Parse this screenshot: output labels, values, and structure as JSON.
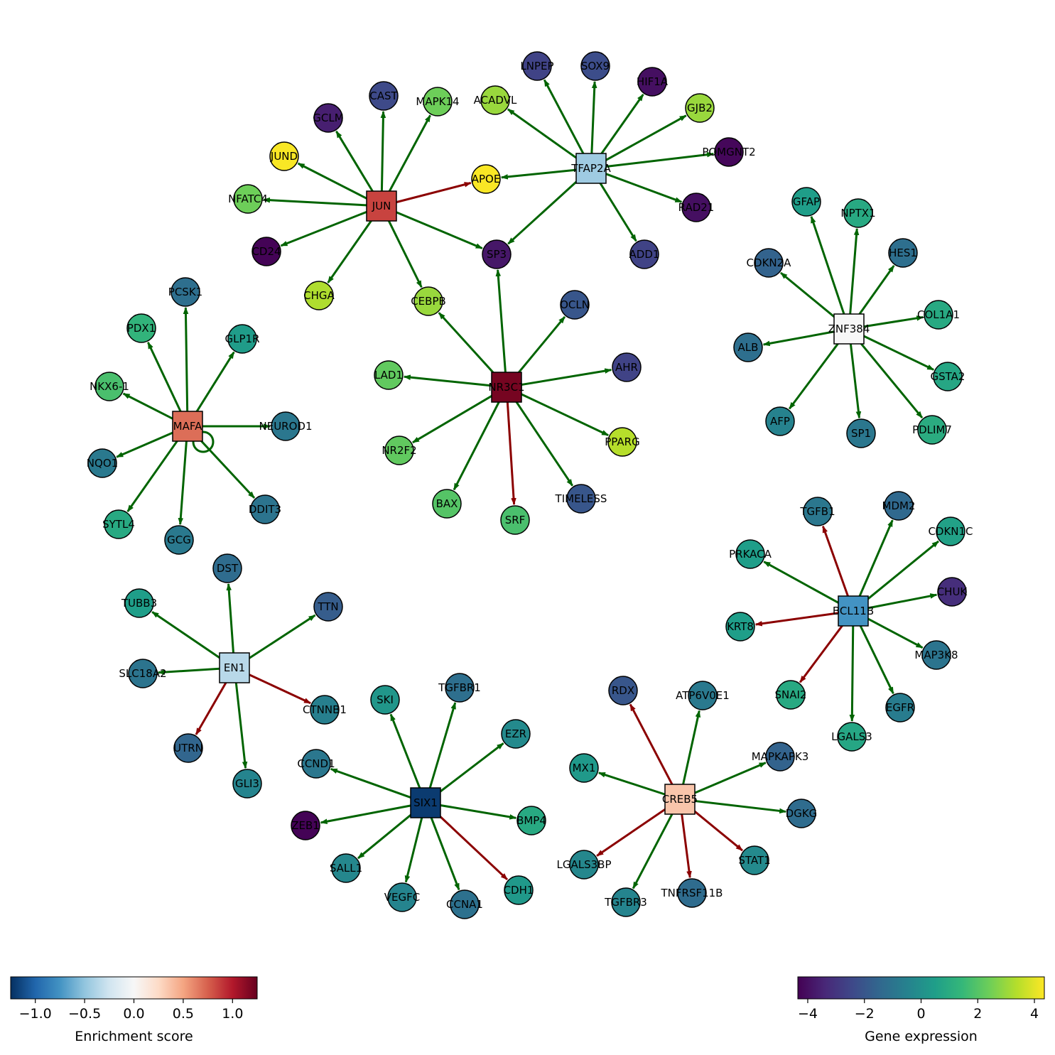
{
  "network": {
    "tfs": [
      {
        "id": "JUN",
        "label": "JUN",
        "score": 0.85
      },
      {
        "id": "TFAP2A",
        "label": "TFAP2A",
        "score": -0.45
      },
      {
        "id": "ZNF384",
        "label": "ZNF384",
        "score": 0.0
      },
      {
        "id": "MAFA",
        "label": "MAFA",
        "score": 0.7
      },
      {
        "id": "NR3C1",
        "label": "NR3C1",
        "score": 1.2
      },
      {
        "id": "BCL11B",
        "label": "BCL11B",
        "score": -0.75
      },
      {
        "id": "EN1",
        "label": "EN1",
        "score": -0.35
      },
      {
        "id": "SIX1",
        "label": "SIX1",
        "score": -1.2
      },
      {
        "id": "CREB5",
        "label": "CREB5",
        "score": 0.35
      }
    ],
    "genes": [
      {
        "id": "JUND",
        "label": "JUND",
        "expr": 4.3
      },
      {
        "id": "GCLM",
        "label": "GCLM",
        "expr": -3.6
      },
      {
        "id": "CAST",
        "label": "CAST",
        "expr": -2.4
      },
      {
        "id": "MAPK14",
        "label": "MAPK14",
        "expr": 2.4
      },
      {
        "id": "NFATC4",
        "label": "NFATC4",
        "expr": 2.4
      },
      {
        "id": "CD24",
        "label": "CD24",
        "expr": -4.3
      },
      {
        "id": "CHGA",
        "label": "CHGA",
        "expr": 3.3
      },
      {
        "id": "APOE",
        "label": "APOE",
        "expr": 4.3
      },
      {
        "id": "SP3",
        "label": "SP3",
        "expr": -3.8
      },
      {
        "id": "CEBPB",
        "label": "CEBPB",
        "expr": 3.0
      },
      {
        "id": "LNPEP",
        "label": "LNPEP",
        "expr": -2.6
      },
      {
        "id": "SOX9",
        "label": "SOX9",
        "expr": -2.3
      },
      {
        "id": "HIF1A",
        "label": "HIF1A",
        "expr": -4.0
      },
      {
        "id": "ACADVL",
        "label": "ACADVL",
        "expr": 3.0
      },
      {
        "id": "GJB2",
        "label": "GJB2",
        "expr": 3.0
      },
      {
        "id": "POMGNT2",
        "label": "POMGNT2",
        "expr": -4.2
      },
      {
        "id": "RAD21",
        "label": "RAD21",
        "expr": -4.0
      },
      {
        "id": "ADD1",
        "label": "ADD1",
        "expr": -2.6
      },
      {
        "id": "GFAP",
        "label": "GFAP",
        "expr": 0.5
      },
      {
        "id": "NPTX1",
        "label": "NPTX1",
        "expr": 0.9
      },
      {
        "id": "HES1",
        "label": "HES1",
        "expr": -1.2
      },
      {
        "id": "CDKN2A",
        "label": "CDKN2A",
        "expr": -1.6
      },
      {
        "id": "COL1A1",
        "label": "COL1A1",
        "expr": 0.9
      },
      {
        "id": "ALB",
        "label": "ALB",
        "expr": -1.2
      },
      {
        "id": "GSTA2",
        "label": "GSTA2",
        "expr": 0.8
      },
      {
        "id": "AFP",
        "label": "AFP",
        "expr": -0.5
      },
      {
        "id": "SP1",
        "label": "SP1",
        "expr": -0.9
      },
      {
        "id": "PDLIM7",
        "label": "PDLIM7",
        "expr": 1.0
      },
      {
        "id": "PCSK1",
        "label": "PCSK1",
        "expr": -1.2
      },
      {
        "id": "PDX1",
        "label": "PDX1",
        "expr": 1.3
      },
      {
        "id": "GLP1R",
        "label": "GLP1R",
        "expr": 0.4
      },
      {
        "id": "NKX6-1",
        "label": "NKX6-1",
        "expr": 1.8
      },
      {
        "id": "NEUROD1",
        "label": "NEUROD1",
        "expr": -0.9
      },
      {
        "id": "NQO1",
        "label": "NQO1",
        "expr": -0.8
      },
      {
        "id": "SYTL4",
        "label": "SYTL4",
        "expr": 0.9
      },
      {
        "id": "GCG",
        "label": "GCG",
        "expr": -0.8
      },
      {
        "id": "DDIT3",
        "label": "DDIT3",
        "expr": -1.0
      },
      {
        "id": "OCLN",
        "label": "OCLN",
        "expr": -2.0
      },
      {
        "id": "LAD1",
        "label": "LAD1",
        "expr": 2.2
      },
      {
        "id": "AHR",
        "label": "AHR",
        "expr": -2.6
      },
      {
        "id": "NR2F2",
        "label": "NR2F2",
        "expr": 2.2
      },
      {
        "id": "PPARG",
        "label": "PPARG",
        "expr": 3.4
      },
      {
        "id": "BAX",
        "label": "BAX",
        "expr": 2.0
      },
      {
        "id": "SRF",
        "label": "SRF",
        "expr": 1.8
      },
      {
        "id": "TIMELESS",
        "label": "TIMELESS",
        "expr": -2.0
      },
      {
        "id": "TGFB1",
        "label": "TGFB1",
        "expr": -0.9
      },
      {
        "id": "MDM2",
        "label": "MDM2",
        "expr": -1.4
      },
      {
        "id": "CDKN1C",
        "label": "CDKN1C",
        "expr": 0.6
      },
      {
        "id": "PRKACA",
        "label": "PRKACA",
        "expr": 0.5
      },
      {
        "id": "CHUK",
        "label": "CHUK",
        "expr": -3.2
      },
      {
        "id": "KRT8",
        "label": "KRT8",
        "expr": 0.5
      },
      {
        "id": "MAP3K8",
        "label": "MAP3K8",
        "expr": -1.0
      },
      {
        "id": "SNAI2",
        "label": "SNAI2",
        "expr": 0.9
      },
      {
        "id": "EGFR",
        "label": "EGFR",
        "expr": -0.7
      },
      {
        "id": "LGALS3",
        "label": "LGALS3",
        "expr": 0.8
      },
      {
        "id": "DST",
        "label": "DST",
        "expr": -1.3
      },
      {
        "id": "TUBB3",
        "label": "TUBB3",
        "expr": 0.5
      },
      {
        "id": "TTN",
        "label": "TTN",
        "expr": -1.8
      },
      {
        "id": "SLC18A2",
        "label": "SLC18A2",
        "expr": -1.0
      },
      {
        "id": "CTNNB1",
        "label": "CTNNB1",
        "expr": -0.6
      },
      {
        "id": "UTRN",
        "label": "UTRN",
        "expr": -1.5
      },
      {
        "id": "GLI3",
        "label": "GLI3",
        "expr": -0.4
      },
      {
        "id": "SKI",
        "label": "SKI",
        "expr": 0.2
      },
      {
        "id": "TGFBR1",
        "label": "TGFBR1",
        "expr": -1.2
      },
      {
        "id": "EZR",
        "label": "EZR",
        "expr": -0.2
      },
      {
        "id": "CCND1",
        "label": "CCND1",
        "expr": -0.9
      },
      {
        "id": "BMP4",
        "label": "BMP4",
        "expr": 0.9
      },
      {
        "id": "ZEB1",
        "label": "ZEB1",
        "expr": -4.3
      },
      {
        "id": "SALL1",
        "label": "SALL1",
        "expr": -0.3
      },
      {
        "id": "VEGFC",
        "label": "VEGFC",
        "expr": -0.4
      },
      {
        "id": "CCNA1",
        "label": "CCNA1",
        "expr": -1.1
      },
      {
        "id": "CDH1",
        "label": "CDH1",
        "expr": 0.3
      },
      {
        "id": "RDX",
        "label": "RDX",
        "expr": -2.0
      },
      {
        "id": "ATP6V0E1",
        "label": "ATP6V0E1",
        "expr": -0.8
      },
      {
        "id": "MX1",
        "label": "MX1",
        "expr": 0.3
      },
      {
        "id": "MAPKAPK3",
        "label": "MAPKAPK3",
        "expr": -1.6
      },
      {
        "id": "DGKG",
        "label": "DGKG",
        "expr": -1.3
      },
      {
        "id": "LGALS3BP",
        "label": "LGALS3BP",
        "expr": -0.3
      },
      {
        "id": "STAT1",
        "label": "STAT1",
        "expr": -0.2
      },
      {
        "id": "TGFBR3",
        "label": "TGFBR3",
        "expr": -0.4
      },
      {
        "id": "TNFRSF11B",
        "label": "TNFRSF11B",
        "expr": -1.3
      }
    ],
    "edges": [
      [
        "JUN",
        "JUND",
        "act"
      ],
      [
        "JUN",
        "GCLM",
        "act"
      ],
      [
        "JUN",
        "CAST",
        "act"
      ],
      [
        "JUN",
        "MAPK14",
        "act"
      ],
      [
        "JUN",
        "NFATC4",
        "act"
      ],
      [
        "JUN",
        "CD24",
        "act"
      ],
      [
        "JUN",
        "CHGA",
        "act"
      ],
      [
        "JUN",
        "APOE",
        "rep"
      ],
      [
        "JUN",
        "SP3",
        "act"
      ],
      [
        "JUN",
        "CEBPB",
        "act"
      ],
      [
        "TFAP2A",
        "LNPEP",
        "act"
      ],
      [
        "TFAP2A",
        "SOX9",
        "act"
      ],
      [
        "TFAP2A",
        "HIF1A",
        "act"
      ],
      [
        "TFAP2A",
        "ACADVL",
        "act"
      ],
      [
        "TFAP2A",
        "GJB2",
        "act"
      ],
      [
        "TFAP2A",
        "POMGNT2",
        "act"
      ],
      [
        "TFAP2A",
        "RAD21",
        "act"
      ],
      [
        "TFAP2A",
        "ADD1",
        "act"
      ],
      [
        "TFAP2A",
        "APOE",
        "act"
      ],
      [
        "TFAP2A",
        "SP3",
        "act"
      ],
      [
        "ZNF384",
        "GFAP",
        "act"
      ],
      [
        "ZNF384",
        "NPTX1",
        "act"
      ],
      [
        "ZNF384",
        "HES1",
        "act"
      ],
      [
        "ZNF384",
        "CDKN2A",
        "act"
      ],
      [
        "ZNF384",
        "COL1A1",
        "act"
      ],
      [
        "ZNF384",
        "ALB",
        "act"
      ],
      [
        "ZNF384",
        "GSTA2",
        "act"
      ],
      [
        "ZNF384",
        "AFP",
        "act"
      ],
      [
        "ZNF384",
        "SP1",
        "act"
      ],
      [
        "ZNF384",
        "PDLIM7",
        "act"
      ],
      [
        "MAFA",
        "PCSK1",
        "act"
      ],
      [
        "MAFA",
        "PDX1",
        "act"
      ],
      [
        "MAFA",
        "GLP1R",
        "act"
      ],
      [
        "MAFA",
        "NKX6-1",
        "act"
      ],
      [
        "MAFA",
        "NEUROD1",
        "act"
      ],
      [
        "MAFA",
        "NQO1",
        "act"
      ],
      [
        "MAFA",
        "SYTL4",
        "act"
      ],
      [
        "MAFA",
        "GCG",
        "act"
      ],
      [
        "MAFA",
        "DDIT3",
        "act"
      ],
      [
        "MAFA",
        "MAFA",
        "act"
      ],
      [
        "NR3C1",
        "SP3",
        "act"
      ],
      [
        "NR3C1",
        "CEBPB",
        "act"
      ],
      [
        "NR3C1",
        "OCLN",
        "act"
      ],
      [
        "NR3C1",
        "LAD1",
        "act"
      ],
      [
        "NR3C1",
        "AHR",
        "act"
      ],
      [
        "NR3C1",
        "NR2F2",
        "act"
      ],
      [
        "NR3C1",
        "PPARG",
        "act"
      ],
      [
        "NR3C1",
        "BAX",
        "act"
      ],
      [
        "NR3C1",
        "SRF",
        "rep"
      ],
      [
        "NR3C1",
        "TIMELESS",
        "act"
      ],
      [
        "BCL11B",
        "TGFB1",
        "rep"
      ],
      [
        "BCL11B",
        "MDM2",
        "act"
      ],
      [
        "BCL11B",
        "CDKN1C",
        "act"
      ],
      [
        "BCL11B",
        "PRKACA",
        "act"
      ],
      [
        "BCL11B",
        "CHUK",
        "act"
      ],
      [
        "BCL11B",
        "KRT8",
        "rep"
      ],
      [
        "BCL11B",
        "MAP3K8",
        "act"
      ],
      [
        "BCL11B",
        "SNAI2",
        "rep"
      ],
      [
        "BCL11B",
        "EGFR",
        "act"
      ],
      [
        "BCL11B",
        "LGALS3",
        "act"
      ],
      [
        "EN1",
        "DST",
        "act"
      ],
      [
        "EN1",
        "TUBB3",
        "act"
      ],
      [
        "EN1",
        "TTN",
        "act"
      ],
      [
        "EN1",
        "SLC18A2",
        "act"
      ],
      [
        "EN1",
        "CTNNB1",
        "rep"
      ],
      [
        "EN1",
        "UTRN",
        "rep"
      ],
      [
        "EN1",
        "GLI3",
        "act"
      ],
      [
        "SIX1",
        "SKI",
        "act"
      ],
      [
        "SIX1",
        "TGFBR1",
        "act"
      ],
      [
        "SIX1",
        "EZR",
        "act"
      ],
      [
        "SIX1",
        "CCND1",
        "act"
      ],
      [
        "SIX1",
        "BMP4",
        "act"
      ],
      [
        "SIX1",
        "ZEB1",
        "act"
      ],
      [
        "SIX1",
        "SALL1",
        "act"
      ],
      [
        "SIX1",
        "VEGFC",
        "act"
      ],
      [
        "SIX1",
        "CCNA1",
        "act"
      ],
      [
        "SIX1",
        "CDH1",
        "rep"
      ],
      [
        "CREB5",
        "RDX",
        "rep"
      ],
      [
        "CREB5",
        "ATP6V0E1",
        "act"
      ],
      [
        "CREB5",
        "MX1",
        "act"
      ],
      [
        "CREB5",
        "MAPKAPK3",
        "act"
      ],
      [
        "CREB5",
        "DGKG",
        "act"
      ],
      [
        "CREB5",
        "LGALS3BP",
        "rep"
      ],
      [
        "CREB5",
        "STAT1",
        "rep"
      ],
      [
        "CREB5",
        "TGFBR3",
        "act"
      ],
      [
        "CREB5",
        "TNFRSF11B",
        "rep"
      ]
    ]
  },
  "colorbars": {
    "enrichment": {
      "title": "Enrichment score",
      "colormap": "RdBu_r",
      "range": [
        -1.25,
        1.25
      ],
      "ticks": [
        -1.0,
        -0.5,
        0.0,
        0.5,
        1.0
      ],
      "tick_labels": [
        "−1.0",
        "−0.5",
        "0.0",
        "0.5",
        "1.0"
      ]
    },
    "expression": {
      "title": "Gene expression",
      "colormap": "viridis",
      "range": [
        -4.35,
        4.35
      ],
      "ticks": [
        -4,
        -2,
        0,
        2,
        4
      ],
      "tick_labels": [
        "−4",
        "−2",
        "0",
        "2",
        "4"
      ]
    }
  },
  "colors": {
    "activation_edge": "#006400",
    "repression_edge": "#8b0000",
    "node_outline": "#000000"
  }
}
